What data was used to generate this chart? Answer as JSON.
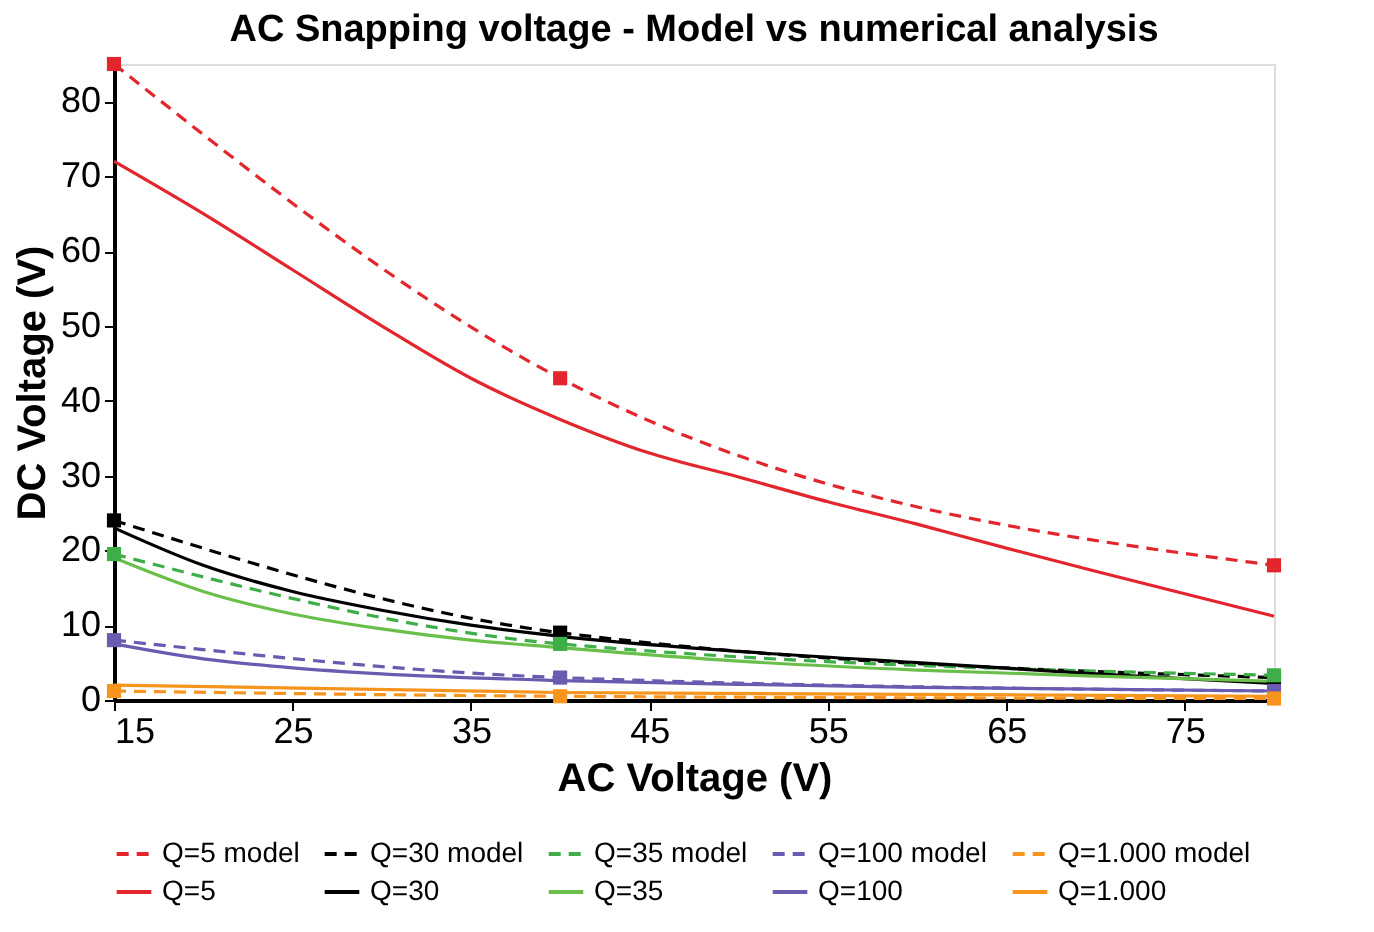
{
  "chart_data": {
    "type": "line",
    "title": "AC Snapping voltage - Model vs numerical analysis",
    "xlabel": "AC Voltage (V)",
    "ylabel": "DC Voltage (V)",
    "xlim": [
      15,
      80
    ],
    "xticks": [
      15,
      25,
      35,
      45,
      55,
      65,
      75
    ],
    "ylim": [
      0,
      85
    ],
    "yticks": [
      0,
      10,
      20,
      30,
      40,
      50,
      60,
      70,
      80
    ],
    "grid": false,
    "legend": "bottom",
    "series": [
      {
        "name": "Q=5 model",
        "color": "#e3262e",
        "line_style": "dashed",
        "marker": "square",
        "x": [
          15,
          40,
          80
        ],
        "values": [
          85,
          43,
          18
        ]
      },
      {
        "name": "Q=30 model",
        "color": "#000000",
        "line_style": "dashed",
        "marker": "square",
        "x": [
          15,
          40,
          80
        ],
        "values": [
          24,
          9,
          3
        ]
      },
      {
        "name": "Q=35 model",
        "color": "#3fae49",
        "line_style": "dashed",
        "marker": "square",
        "x": [
          15,
          40,
          80
        ],
        "values": [
          19.5,
          7.5,
          3.3
        ]
      },
      {
        "name": "Q=100 model",
        "color": "#6a5bb0",
        "line_style": "dashed",
        "marker": "square",
        "x": [
          15,
          40,
          80
        ],
        "values": [
          8,
          3,
          1.2
        ]
      },
      {
        "name": "Q=1.000 model",
        "color": "#f7941d",
        "line_style": "dashed",
        "marker": "square",
        "x": [
          15,
          40,
          80
        ],
        "values": [
          1.2,
          0.5,
          0.2
        ]
      },
      {
        "name": "Q=5",
        "color": "#e3262e",
        "line_style": "solid",
        "marker": "none",
        "x": [
          15,
          20,
          25,
          30,
          35,
          40,
          45,
          50,
          55,
          60,
          65,
          70,
          75,
          80
        ],
        "values": [
          72,
          65,
          57.5,
          50,
          43,
          37.5,
          33,
          29.8,
          26.5,
          23.5,
          20.3,
          17.2,
          14.2,
          11.2
        ]
      },
      {
        "name": "Q=30",
        "color": "#000000",
        "line_style": "solid",
        "marker": "none",
        "x": [
          15,
          20,
          25,
          30,
          35,
          40,
          50,
          60,
          70,
          80
        ],
        "values": [
          23,
          18,
          14.5,
          12,
          10,
          8.5,
          6.5,
          5,
          3.5,
          2.2
        ]
      },
      {
        "name": "Q=35",
        "color": "#6abf4b",
        "line_style": "solid",
        "marker": "none",
        "x": [
          15,
          20,
          25,
          30,
          35,
          40,
          50,
          60,
          70,
          80
        ],
        "values": [
          19,
          14.5,
          11.5,
          9.5,
          8,
          7,
          5.2,
          4,
          3.2,
          2.5
        ]
      },
      {
        "name": "Q=100",
        "color": "#6a5bb0",
        "line_style": "solid",
        "marker": "none",
        "x": [
          15,
          20,
          25,
          30,
          40,
          50,
          60,
          80
        ],
        "values": [
          7.5,
          5.5,
          4.3,
          3.5,
          2.6,
          2.1,
          1.7,
          1.2
        ]
      },
      {
        "name": "Q=1.000",
        "color": "#f7941d",
        "line_style": "solid",
        "marker": "none",
        "x": [
          15,
          40,
          80
        ],
        "values": [
          2,
          1,
          0.5
        ]
      }
    ]
  }
}
